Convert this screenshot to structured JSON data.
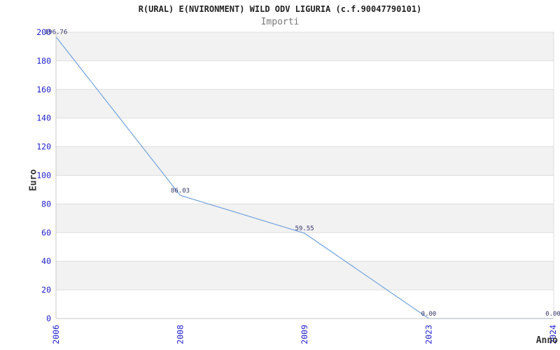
{
  "chart": {
    "title": "R(URAL) E(NVIRONMENT) WILD ODV LIGURIA (c.f.90047790101)",
    "subtitle": "Importi"
  },
  "chart_data": {
    "type": "line",
    "title": "R(URAL) E(NVIRONMENT) WILD ODV LIGURIA (c.f.90047790101)",
    "subtitle": "Importi",
    "categories": [
      "2006",
      "2008",
      "2009",
      "2023",
      "2024"
    ],
    "values": [
      196.76,
      86.03,
      59.55,
      0.0,
      0.0
    ],
    "point_labels": [
      "196.76",
      "86.03",
      "59.55",
      "0.00",
      "0.00"
    ],
    "xlabel": "Anno",
    "ylabel": "Euro",
    "ylim": [
      0,
      200
    ],
    "yticks": [
      0,
      20,
      40,
      60,
      80,
      100,
      120,
      140,
      160,
      180,
      200
    ],
    "grid": "horizontal",
    "bands": "alternating-gray-starting-at-top",
    "legend": "none",
    "x_tick_rotation": -90,
    "colors": {
      "line": "#74a3dd",
      "tick_label": "#2121cd",
      "point_label": "#333366",
      "band": "#f2f2f2",
      "gridline": "#dddddd",
      "axis": "#c8c8c8",
      "title": "#222222",
      "subtitle": "#777777",
      "axis_title": "#333333"
    }
  }
}
